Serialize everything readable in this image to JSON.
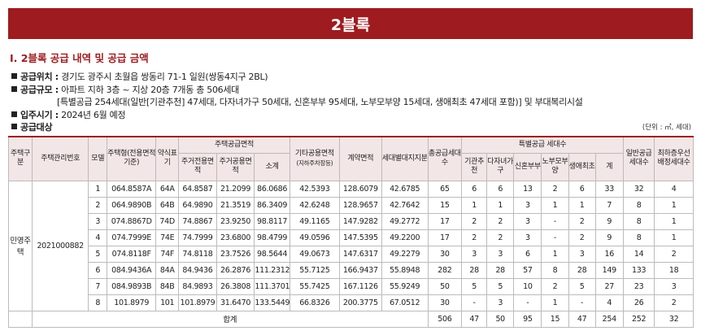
{
  "banner": "2블록",
  "section_title": "Ⅰ. 2블록 공급 내역 및 공급 금액",
  "info": {
    "location_label": "공급위치 :",
    "location_value": "경기도 광주시 초월읍 쌍동리 71-1 일원(쌍동4지구 2BL)",
    "scale_label": "공급규모 :",
    "scale_value": "아파트 지하 3층 ~ 지상 20층 7개동 총 506세대",
    "scale_detail": "[특별공급 254세대(일반[기관추천] 47세대, 다자녀가구 50세대, 신혼부부 95세대, 노부모부양 15세대, 생애최초 47세대 포함)] 및 부대복리시설",
    "move_in_label": "입주시기 :",
    "move_in_value": "2024년 6월 예정",
    "target_label": "공급대상"
  },
  "unit_note": "(단위 : ㎡, 세대)",
  "headers": {
    "housing_type": "주택구분",
    "management_no": "주택관리번호",
    "model": "모델",
    "house_type": "주택형(전용면적기준)",
    "short_type": "약식표기",
    "supply_area": "주택공급면적",
    "exclusive_area": "주거전용면적",
    "common_area": "주거공용면적",
    "subtotal": "소계",
    "other_common": "기타공용면적",
    "other_common_note": "(지하주차장등)",
    "contract_area": "계약면적",
    "land_share": "세대별대지지분",
    "total_supply": "총공급세대수",
    "special_supply": "특별공급 세대수",
    "institution": "기관추천",
    "multi_child": "다자녀가구",
    "newlywed": "신혼부부",
    "elderly": "노부모부양",
    "first_life": "생애최초",
    "special_total": "계",
    "general": "일반공급세대수",
    "lowest_floor": "최하층우선배정세대수"
  },
  "group": {
    "housing_type": "민영주택",
    "management_no": "2021000882"
  },
  "rows": [
    [
      "1",
      "064.8587A",
      "64A",
      "64.8587",
      "21.2099",
      "86.0686",
      "42.5393",
      "128.6079",
      "42.6785",
      "65",
      "6",
      "6",
      "13",
      "2",
      "6",
      "33",
      "32",
      "4"
    ],
    [
      "2",
      "064.9890B",
      "64B",
      "64.9890",
      "21.3519",
      "86.3409",
      "42.6248",
      "128.9657",
      "42.7642",
      "15",
      "1",
      "1",
      "3",
      "1",
      "1",
      "7",
      "8",
      "1"
    ],
    [
      "3",
      "074.8867D",
      "74D",
      "74.8867",
      "23.9250",
      "98.8117",
      "49.1165",
      "147.9282",
      "49.2772",
      "17",
      "2",
      "2",
      "3",
      "-",
      "2",
      "9",
      "8",
      "1"
    ],
    [
      "4",
      "074.7999E",
      "74E",
      "74.7999",
      "23.6800",
      "98.4799",
      "49.0596",
      "147.5395",
      "49.2200",
      "17",
      "2",
      "2",
      "3",
      "-",
      "2",
      "9",
      "8",
      "1"
    ],
    [
      "5",
      "074.8118F",
      "74F",
      "74.8118",
      "23.7526",
      "98.5644",
      "49.0673",
      "147.6317",
      "49.2279",
      "30",
      "3",
      "3",
      "6",
      "1",
      "3",
      "16",
      "14",
      "2"
    ],
    [
      "6",
      "084.9436A",
      "84A",
      "84.9436",
      "26.2876",
      "111.2312",
      "55.7125",
      "166.9437",
      "55.8948",
      "282",
      "28",
      "28",
      "57",
      "8",
      "28",
      "149",
      "133",
      "18"
    ],
    [
      "7",
      "084.9893B",
      "84B",
      "84.9893",
      "26.3808",
      "111.3701",
      "55.7425",
      "167.1126",
      "55.9249",
      "50",
      "5",
      "5",
      "10",
      "2",
      "5",
      "27",
      "23",
      "3"
    ],
    [
      "8",
      "101.8979",
      "101",
      "101.8979",
      "31.6470",
      "133.5449",
      "66.8326",
      "200.3775",
      "67.0512",
      "30",
      "-",
      "3",
      "-",
      "1",
      "-",
      "4",
      "26",
      "2"
    ]
  ],
  "total": {
    "label": "합계",
    "values": [
      "506",
      "47",
      "50",
      "95",
      "15",
      "47",
      "254",
      "252",
      "32"
    ]
  }
}
